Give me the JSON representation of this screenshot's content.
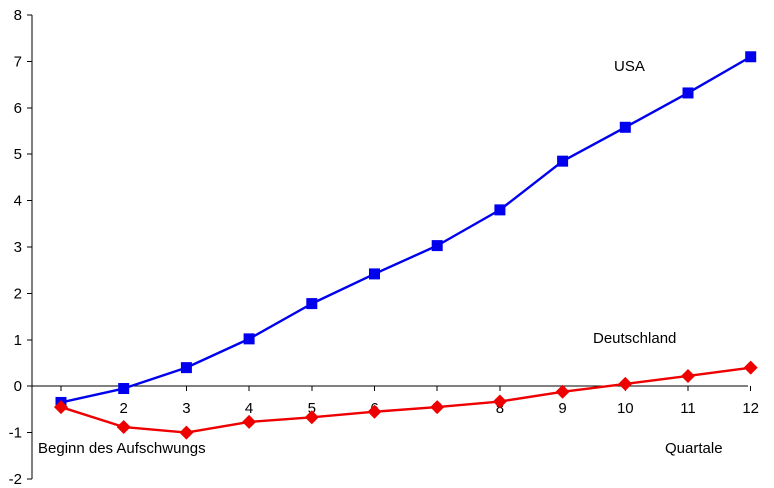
{
  "chart_data": {
    "type": "line",
    "title": "",
    "xlabel": "Quartale",
    "ylabel": "",
    "x": [
      1,
      2,
      3,
      4,
      5,
      6,
      7,
      8,
      9,
      10,
      11,
      12
    ],
    "xlim": [
      1,
      12
    ],
    "ylim": [
      -2,
      8
    ],
    "y_ticks": [
      -2,
      -1,
      0,
      1,
      2,
      3,
      4,
      5,
      6,
      7,
      8
    ],
    "x_tick_labels": [
      "2",
      "3",
      "4",
      "5",
      "6",
      "7",
      "8",
      "9",
      "10",
      "11",
      "12"
    ],
    "grid": false,
    "series": [
      {
        "name": "USA",
        "color": "#0000ee",
        "marker": "square",
        "values": [
          -0.35,
          -0.05,
          0.4,
          1.02,
          1.78,
          2.42,
          3.03,
          3.8,
          4.85,
          5.58,
          6.32,
          7.1
        ]
      },
      {
        "name": "Deutschland",
        "color": "#ee0000",
        "marker": "diamond",
        "values": [
          -0.45,
          -0.88,
          -1.0,
          -0.77,
          -0.67,
          -0.55,
          -0.45,
          -0.33,
          -0.12,
          0.05,
          0.22,
          0.4
        ]
      }
    ],
    "annotations": {
      "start": "Beginn des Aufschwungs",
      "usa": "USA",
      "germany": "Deutschland",
      "quarters": "Quartale"
    }
  }
}
